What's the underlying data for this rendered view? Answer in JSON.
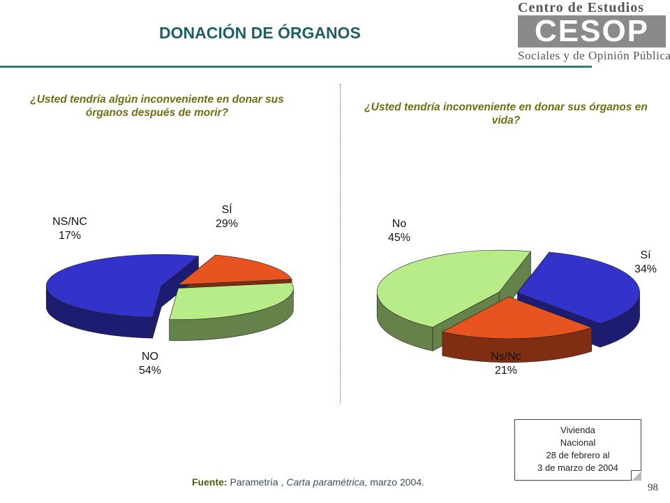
{
  "header": {
    "title": "DONACIÓN DE ÓRGANOS",
    "logo_top": "Centro de Estudios",
    "logo_mark": "CESOP",
    "logo_bottom": "Sociales y de Opinión Pública"
  },
  "chart_data": [
    {
      "type": "pie",
      "title": "¿Usted tendría algún inconveniente en donar sus órganos después de morir?",
      "slices": [
        {
          "label": "SÍ",
          "value": 29,
          "display": "29%",
          "color": "#b8ec88"
        },
        {
          "label": "NO",
          "value": 54,
          "display": "54%",
          "color": "#3333cc"
        },
        {
          "label": "NS/NC",
          "value": 17,
          "display": "17%",
          "color": "#e85420"
        }
      ]
    },
    {
      "type": "pie",
      "title": "¿Usted tendría inconveniente en donar sus órganos en vida?",
      "slices": [
        {
          "label": "Sí",
          "value": 34,
          "display": "34%",
          "color": "#3333cc"
        },
        {
          "label": "Ns/Nc",
          "value": 21,
          "display": "21%",
          "color": "#e85420"
        },
        {
          "label": "No",
          "value": 45,
          "display": "45%",
          "color": "#b8ec88"
        }
      ]
    }
  ],
  "note": {
    "line1": "Vivienda",
    "line2": "Nacional",
    "line3": "28 de febrero al",
    "line4": "3 de marzo de 2004"
  },
  "source": {
    "label": "Fuente:",
    "text1": " Parametría , ",
    "text2": "Carta paramétrica",
    "text3": ", marzo 2004."
  },
  "page_number": "98"
}
